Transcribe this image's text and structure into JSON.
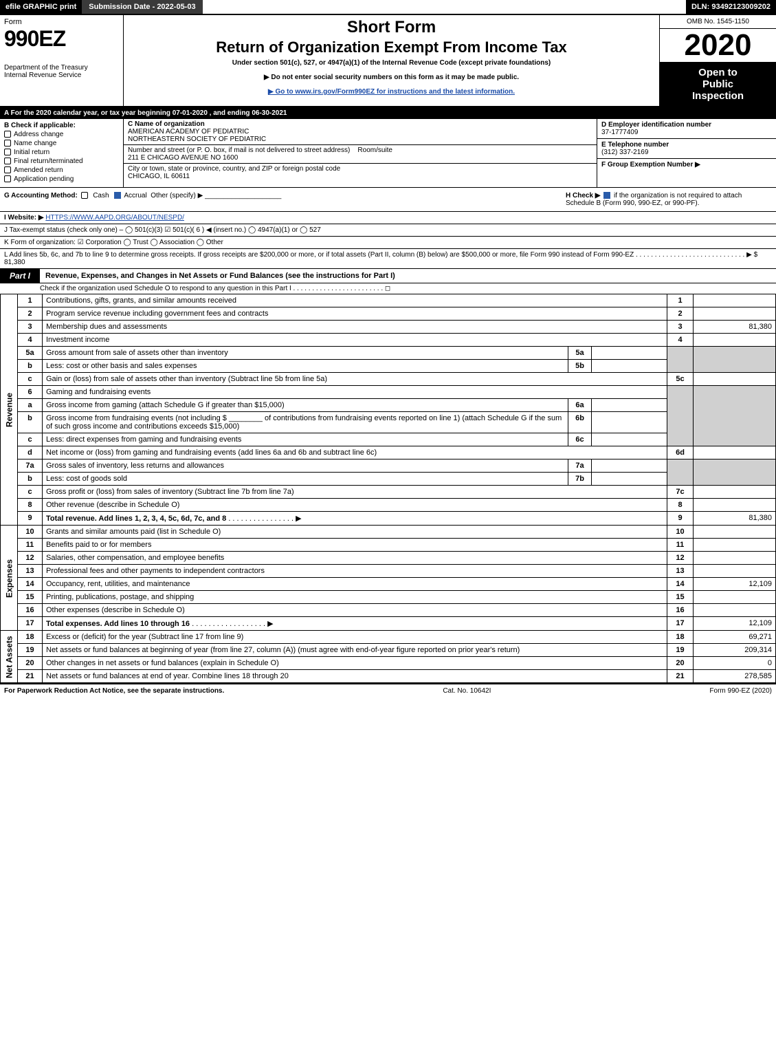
{
  "topbar": {
    "efile": "efile GRAPHIC print",
    "submission": "Submission Date - 2022-05-03",
    "dln": "DLN: 93492123009202"
  },
  "header": {
    "form_word": "Form",
    "form_no": "990EZ",
    "dept1": "Department of the Treasury",
    "dept2": "Internal Revenue Service",
    "short_form": "Short Form",
    "return_title": "Return of Organization Exempt From Income Tax",
    "subtitle": "Under section 501(c), 527, or 4947(a)(1) of the Internal Revenue Code (except private foundations)",
    "warn": "▶ Do not enter social security numbers on this form as it may be made public.",
    "goto": "▶ Go to www.irs.gov/Form990EZ for instructions and the latest information.",
    "omb": "OMB No. 1545-1150",
    "year": "2020",
    "open1": "Open to",
    "open2": "Public",
    "open3": "Inspection"
  },
  "sectionA": "A For the 2020 calendar year, or tax year beginning 07-01-2020 , and ending 06-30-2021",
  "colB": {
    "title": "B  Check if applicable:",
    "opts": [
      "Address change",
      "Name change",
      "Initial return",
      "Final return/terminated",
      "Amended return",
      "Application pending"
    ]
  },
  "colC": {
    "name_label": "C Name of organization",
    "name1": "AMERICAN ACADEMY OF PEDIATRIC",
    "name2": "NORTHEASTERN SOCIETY OF PEDIATRIC",
    "addr_label": "Number and street (or P. O. box, if mail is not delivered to street address)",
    "room_label": "Room/suite",
    "addr": "211 E CHICAGO AVENUE NO 1600",
    "city_label": "City or town, state or province, country, and ZIP or foreign postal code",
    "city": "CHICAGO, IL  60611"
  },
  "colD": {
    "ein_label": "D Employer identification number",
    "ein": "37-1777409",
    "tel_label": "E Telephone number",
    "tel": "(312) 337-2169",
    "group_label": "F Group Exemption Number  ▶"
  },
  "lineG": {
    "label": "G Accounting Method:",
    "cash": "Cash",
    "accrual": "Accrual",
    "other": "Other (specify) ▶",
    "h_label": "H  Check ▶",
    "h_text": "if the organization is not required to attach Schedule B (Form 990, 990-EZ, or 990-PF)."
  },
  "lineI": {
    "label": "I Website: ▶",
    "url": "HTTPS://WWW.AAPD.ORG/ABOUT/NESPD/"
  },
  "lineJ": "J Tax-exempt status (check only one) –  ◯ 501(c)(3)  ☑ 501(c)( 6 ) ◀ (insert no.)  ◯ 4947(a)(1) or  ◯ 527",
  "lineK": "K Form of organization:   ☑ Corporation   ◯ Trust   ◯ Association   ◯ Other",
  "lineL": {
    "text": "L Add lines 5b, 6c, and 7b to line 9 to determine gross receipts. If gross receipts are $200,000 or more, or if total assets (Part II, column (B) below) are $500,000 or more, file Form 990 instead of Form 990-EZ . . . . . . . . . . . . . . . . . . . . . . . . . . . . . ▶ $",
    "amount": "81,380"
  },
  "part1": {
    "badge": "Part I",
    "title": "Revenue, Expenses, and Changes in Net Assets or Fund Balances (see the instructions for Part I)",
    "sub": "Check if the organization used Schedule O to respond to any question in this Part I . . . . . . . . . . . . . . . . . . . . . . . . ◻"
  },
  "sections": {
    "revenue": "Revenue",
    "expenses": "Expenses",
    "netassets": "Net Assets"
  },
  "lines": {
    "l1": "Contributions, gifts, grants, and similar amounts received",
    "l2": "Program service revenue including government fees and contracts",
    "l3": "Membership dues and assessments",
    "l3_amt": "81,380",
    "l4": "Investment income",
    "l5a": "Gross amount from sale of assets other than inventory",
    "l5b": "Less: cost or other basis and sales expenses",
    "l5c": "Gain or (loss) from sale of assets other than inventory (Subtract line 5b from line 5a)",
    "l6": "Gaming and fundraising events",
    "l6a": "Gross income from gaming (attach Schedule G if greater than $15,000)",
    "l6b1": "Gross income from fundraising events (not including $",
    "l6b2": "of contributions from fundraising events reported on line 1) (attach Schedule G if the sum of such gross income and contributions exceeds $15,000)",
    "l6c": "Less: direct expenses from gaming and fundraising events",
    "l6d": "Net income or (loss) from gaming and fundraising events (add lines 6a and 6b and subtract line 6c)",
    "l7a": "Gross sales of inventory, less returns and allowances",
    "l7b": "Less: cost of goods sold",
    "l7c": "Gross profit or (loss) from sales of inventory (Subtract line 7b from line 7a)",
    "l8": "Other revenue (describe in Schedule O)",
    "l9": "Total revenue. Add lines 1, 2, 3, 4, 5c, 6d, 7c, and 8",
    "l9_amt": "81,380",
    "l10": "Grants and similar amounts paid (list in Schedule O)",
    "l11": "Benefits paid to or for members",
    "l12": "Salaries, other compensation, and employee benefits",
    "l13": "Professional fees and other payments to independent contractors",
    "l14": "Occupancy, rent, utilities, and maintenance",
    "l14_amt": "12,109",
    "l15": "Printing, publications, postage, and shipping",
    "l16": "Other expenses (describe in Schedule O)",
    "l17": "Total expenses. Add lines 10 through 16",
    "l17_amt": "12,109",
    "l18": "Excess or (deficit) for the year (Subtract line 17 from line 9)",
    "l18_amt": "69,271",
    "l19": "Net assets or fund balances at beginning of year (from line 27, column (A)) (must agree with end-of-year figure reported on prior year's return)",
    "l19_amt": "209,314",
    "l20": "Other changes in net assets or fund balances (explain in Schedule O)",
    "l20_amt": "0",
    "l21": "Net assets or fund balances at end of year. Combine lines 18 through 20",
    "l21_amt": "278,585"
  },
  "footer": {
    "left": "For Paperwork Reduction Act Notice, see the separate instructions.",
    "mid": "Cat. No. 10642I",
    "right": "Form 990-EZ (2020)"
  }
}
